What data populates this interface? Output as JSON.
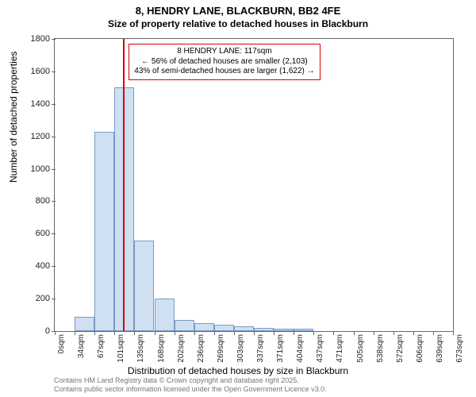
{
  "title_main": "8, HENDRY LANE, BLACKBURN, BB2 4FE",
  "title_sub": "Size of property relative to detached houses in Blackburn",
  "y_axis_label": "Number of detached properties",
  "x_axis_label": "Distribution of detached houses by size in Blackburn",
  "attribution_line1": "Contains HM Land Registry data © Crown copyright and database right 2025.",
  "attribution_line2": "Contains public sector information licensed under the Open Government Licence v3.0.",
  "chart": {
    "type": "histogram",
    "ylim": [
      0,
      1800
    ],
    "y_ticks": [
      0,
      200,
      400,
      600,
      800,
      1000,
      1200,
      1400,
      1600,
      1800
    ],
    "x_categories": [
      "0sqm",
      "34sqm",
      "67sqm",
      "101sqm",
      "135sqm",
      "168sqm",
      "202sqm",
      "236sqm",
      "269sqm",
      "303sqm",
      "337sqm",
      "371sqm",
      "404sqm",
      "437sqm",
      "471sqm",
      "505sqm",
      "538sqm",
      "572sqm",
      "606sqm",
      "639sqm",
      "673sqm"
    ],
    "values": [
      0,
      90,
      1230,
      1500,
      560,
      200,
      70,
      50,
      40,
      30,
      20,
      15,
      15,
      0,
      0,
      0,
      0,
      0,
      0,
      0
    ],
    "bar_fill": "#cfe0f3",
    "bar_border": "#7a9bc4",
    "plot_border": "#666666",
    "background": "#ffffff",
    "tick_fontsize": 10,
    "label_fontsize": 12,
    "title_fontsize": 13
  },
  "highlight": {
    "value_sqm": 117,
    "line_color": "#d90000",
    "line_width": 2
  },
  "callout": {
    "border_color": "#d90000",
    "title": "8 HENDRY LANE: 117sqm",
    "line2": "← 56% of detached houses are smaller (2,103)",
    "line3": "43% of semi-detached houses are larger (1,622) →"
  }
}
